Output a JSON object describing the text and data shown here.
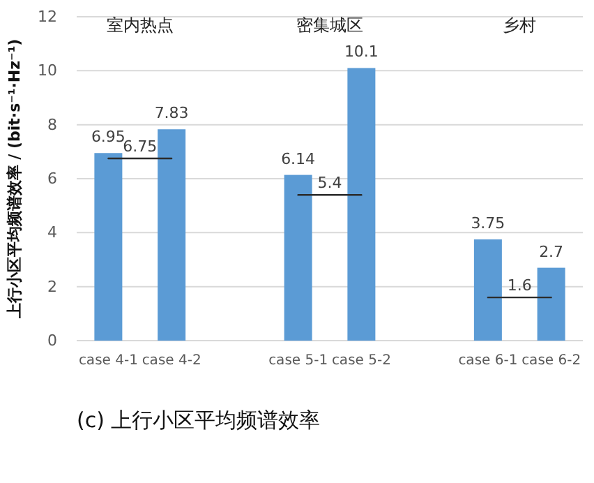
{
  "chart_data": {
    "type": "bar",
    "title": "(c) 上行小区平均频谱效率",
    "ylabel": "上行小区平均频谱效率 / (bit·s⁻¹·Hz⁻¹)",
    "categories": [
      "case 4-1",
      "case 4-2",
      null,
      "case 5-1",
      "case 5-2",
      null,
      "case 6-1",
      "case 6-2"
    ],
    "series": [
      {
        "color": "#5b9bd5",
        "values": [
          6.95,
          7.83,
          null,
          6.14,
          10.1,
          null,
          3.75,
          2.7
        ]
      },
      {
        "type": "line",
        "color": "#2b2b2b",
        "values": [
          6.75,
          6.75,
          null,
          null,
          null,
          null,
          null,
          null
        ],
        "value_labels": [
          "6.75",
          null,
          null,
          null,
          null,
          null,
          null,
          null
        ]
      },
      {
        "type": "line",
        "color": "#2b2b2b",
        "values": [
          null,
          null,
          null,
          5.4,
          5.4,
          null,
          null,
          null
        ],
        "value_labels": [
          null,
          null,
          null,
          "5.4",
          null,
          null,
          null,
          null
        ]
      },
      {
        "type": "line",
        "color": "#2b2b2b",
        "values": [
          null,
          null,
          null,
          null,
          null,
          null,
          1.6,
          1.6
        ],
        "value_labels": [
          null,
          null,
          null,
          null,
          null,
          null,
          "1.6",
          null
        ]
      }
    ],
    "annotations": [
      "室内热点",
      "密集城区",
      "乡村"
    ],
    "ylim": [
      0,
      12
    ],
    "yticks": [
      0,
      2,
      4,
      6,
      8,
      10,
      12
    ],
    "grid": "y",
    "data_labels": true
  }
}
